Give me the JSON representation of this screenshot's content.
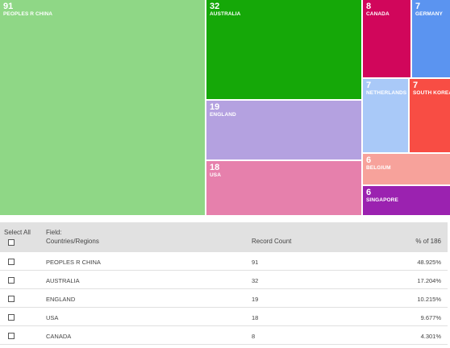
{
  "chart_data": {
    "type": "treemap",
    "title": "",
    "items": [
      {
        "name": "PEOPLES R CHINA",
        "value": 91,
        "color": "#8fd786"
      },
      {
        "name": "AUSTRALIA",
        "value": 32,
        "color": "#15a808"
      },
      {
        "name": "ENGLAND",
        "value": 19,
        "color": "#b4a1e0"
      },
      {
        "name": "USA",
        "value": 18,
        "color": "#e680ac"
      },
      {
        "name": "CANADA",
        "value": 8,
        "color": "#d1065b"
      },
      {
        "name": "GERMANY",
        "value": 7,
        "color": "#5b94f0"
      },
      {
        "name": "NETHERLANDS",
        "value": 7,
        "color": "#a9c9f8"
      },
      {
        "name": "SOUTH KOREA",
        "value": 7,
        "color": "#f84d44"
      },
      {
        "name": "BELGIUM",
        "value": 6,
        "color": "#f7a29b"
      },
      {
        "name": "SINGAPORE",
        "value": 6,
        "color": "#9b22b0"
      }
    ]
  },
  "table": {
    "select_all_label": "Select All",
    "field_label": "Field:",
    "field_name": "Countries/Regions",
    "count_header": "Record Count",
    "percent_header": "% of 186",
    "rows": [
      {
        "country": "PEOPLES R CHINA",
        "count": "91",
        "percent": "48.925%"
      },
      {
        "country": "AUSTRALIA",
        "count": "32",
        "percent": "17.204%"
      },
      {
        "country": "ENGLAND",
        "count": "19",
        "percent": "10.215%"
      },
      {
        "country": "USA",
        "count": "18",
        "percent": "9.677%"
      },
      {
        "country": "CANADA",
        "count": "8",
        "percent": "4.301%"
      }
    ]
  }
}
